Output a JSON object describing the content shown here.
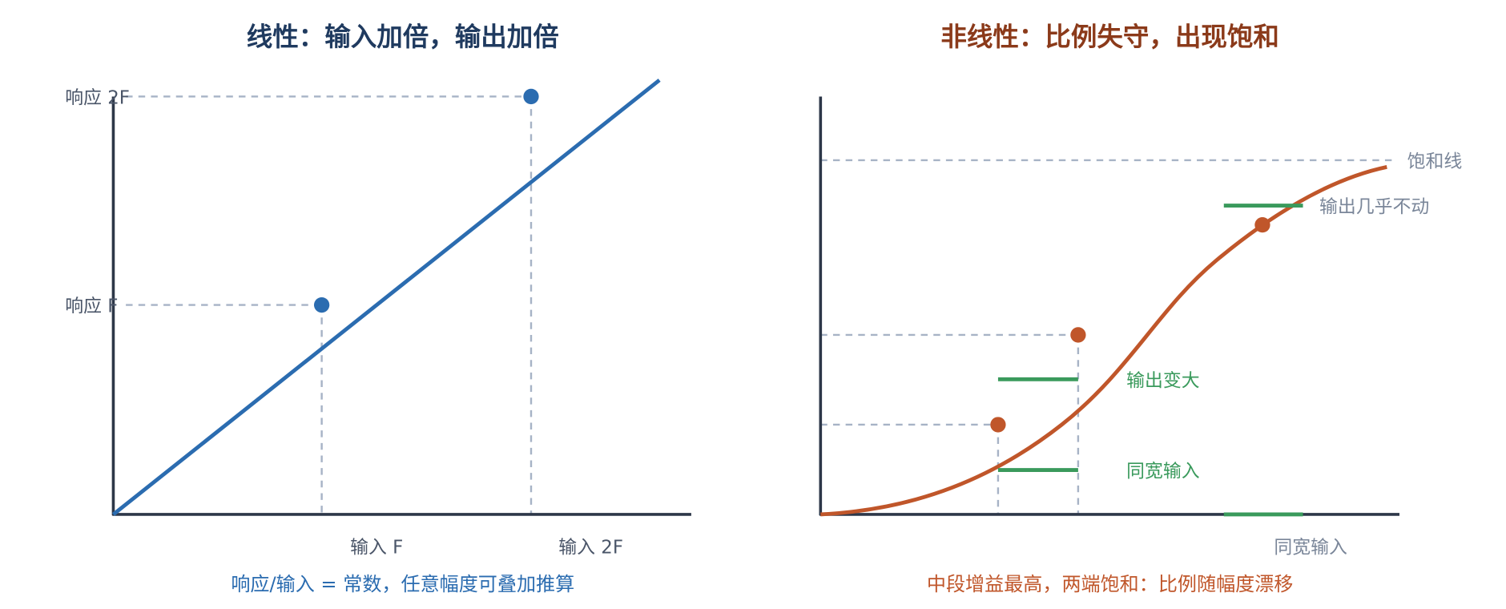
{
  "left": {
    "title": "线性：输入加倍，输出加倍",
    "y_labels": [
      "响应 2F",
      "响应 F"
    ],
    "x_labels": [
      "输入 F",
      "输入 2F"
    ],
    "caption": "响应/输入 = 常数，任意幅度可叠加推算"
  },
  "right": {
    "title": "非线性：比例失守，出现饱和",
    "saturation_label": "饱和线",
    "annotations": [
      "输出几乎不动",
      "输出变大",
      "同宽输入",
      "同宽输入"
    ],
    "caption": "中段增益最高，两端饱和：比例随幅度漂移"
  }
}
